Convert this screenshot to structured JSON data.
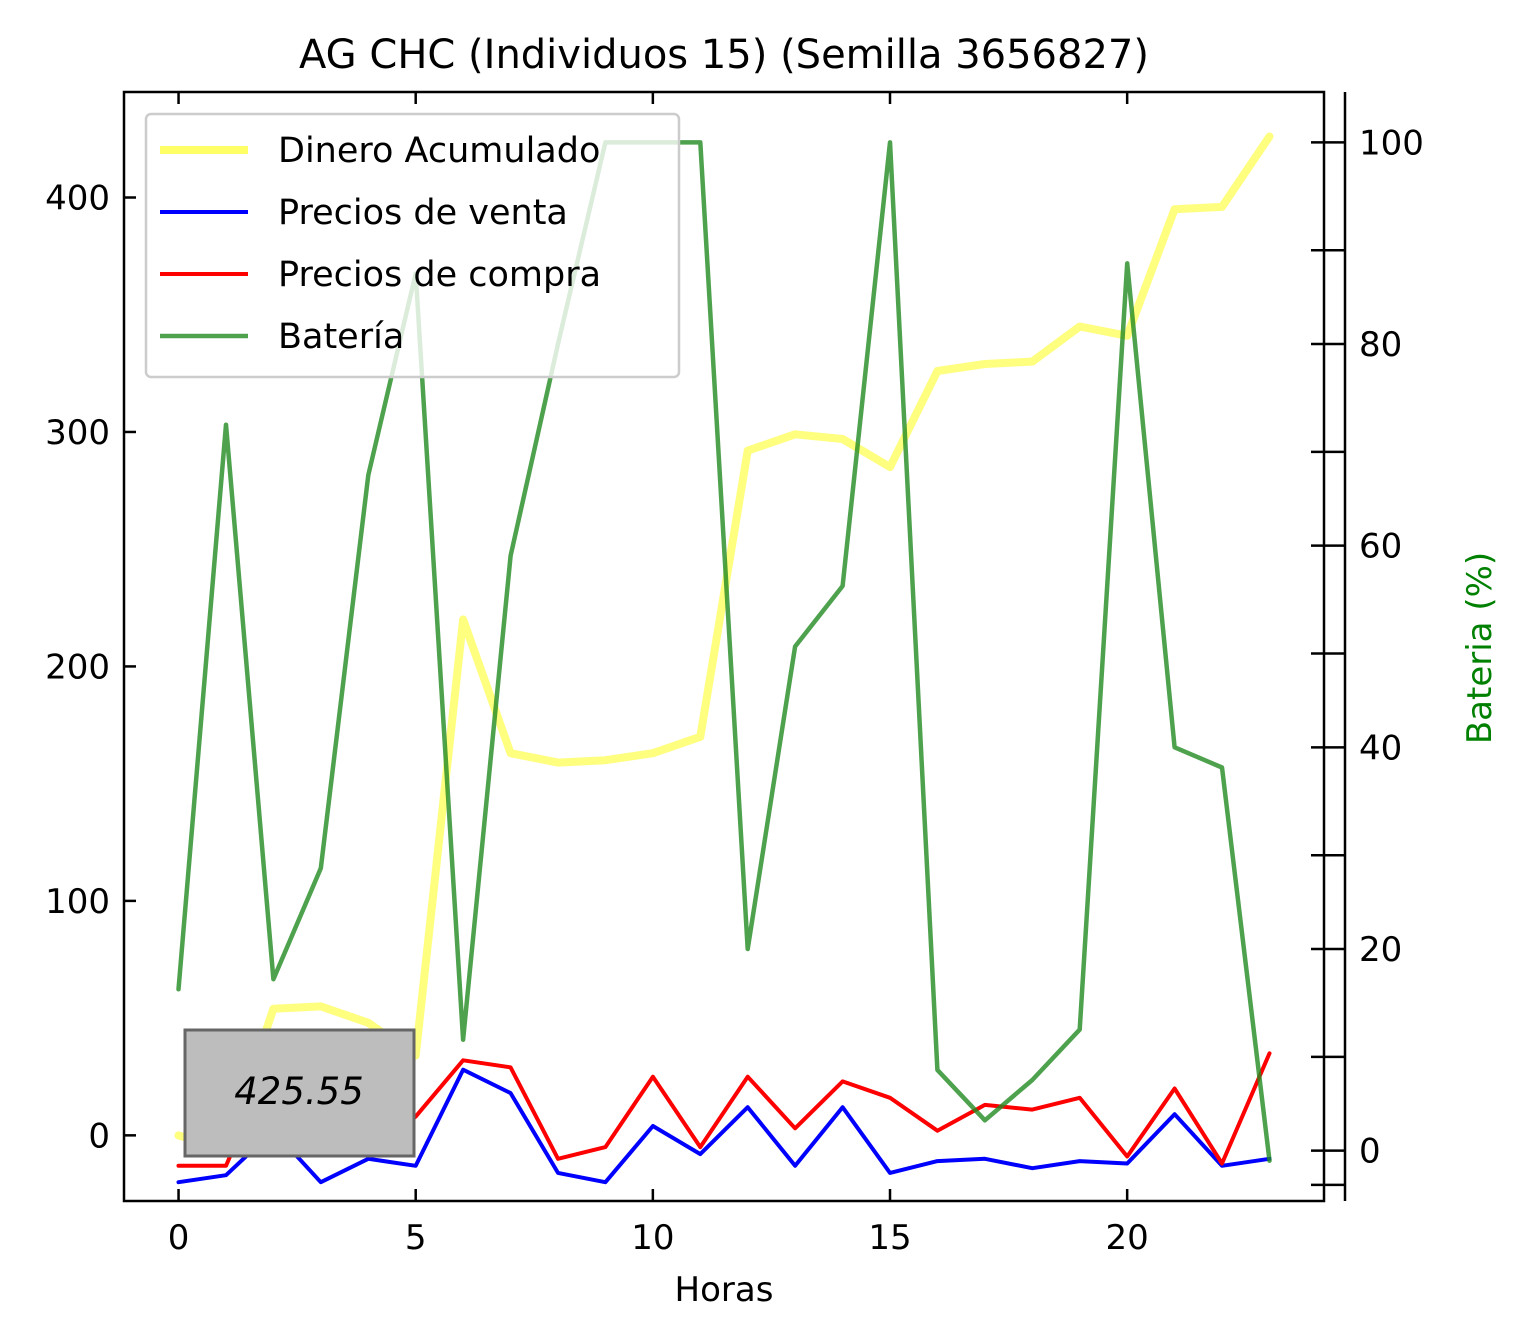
{
  "chart_data": {
    "type": "line",
    "title": "AG CHC (Individuos 15) (Semilla 3656827)",
    "xlabel": "Horas",
    "ylabel": "",
    "ylabel_right": "Bateria (%)",
    "xlim": [
      -1.15,
      24.15
    ],
    "ylim": [
      -28,
      445
    ],
    "ylim_right": [
      -5,
      105
    ],
    "x_ticks": [
      0,
      5,
      10,
      15,
      20
    ],
    "y_ticks": [
      0,
      100,
      200,
      300,
      400
    ],
    "y_ticks_right": [
      0,
      20,
      40,
      60,
      80,
      100
    ],
    "legend_position": "upper-left",
    "grid": false,
    "annotation": "425.55",
    "x": [
      0,
      1,
      2,
      3,
      4,
      5,
      6,
      7,
      8,
      9,
      10,
      11,
      12,
      13,
      14,
      15,
      16,
      17,
      18,
      19,
      20,
      21,
      22,
      23
    ],
    "series": [
      {
        "name": "Dinero Acumulado",
        "axis": "left",
        "color": "#ffff00",
        "values": [
          0,
          -6,
          54,
          55,
          48,
          34,
          220,
          163,
          159,
          160,
          163,
          170,
          292,
          299,
          297,
          285,
          326,
          329,
          330,
          345,
          341,
          395,
          396,
          426
        ]
      },
      {
        "name": "Precios de venta",
        "axis": "left",
        "color": "#0000ff",
        "values": [
          -20,
          -17,
          2,
          -20,
          -10,
          -13,
          28,
          18,
          -16,
          -20,
          4,
          -8,
          12,
          -13,
          12,
          -16,
          -11,
          -10,
          -14,
          -11,
          -12,
          9,
          -13,
          -10
        ]
      },
      {
        "name": "Precios de compra",
        "axis": "left",
        "color": "#ff0000",
        "values": [
          -13,
          -13,
          34,
          6,
          -8,
          8,
          32,
          29,
          -10,
          -5,
          25,
          -5,
          25,
          3,
          23,
          16,
          2,
          13,
          11,
          16,
          -9,
          20,
          -12,
          35
        ]
      },
      {
        "name": "Batería",
        "axis": "right",
        "color": "#228b22",
        "values": [
          16,
          72,
          17,
          28,
          67,
          87,
          11,
          59,
          80,
          100,
          100,
          100,
          20,
          50,
          56,
          100,
          8,
          3,
          7,
          12,
          88,
          40,
          38,
          -1
        ]
      }
    ]
  }
}
